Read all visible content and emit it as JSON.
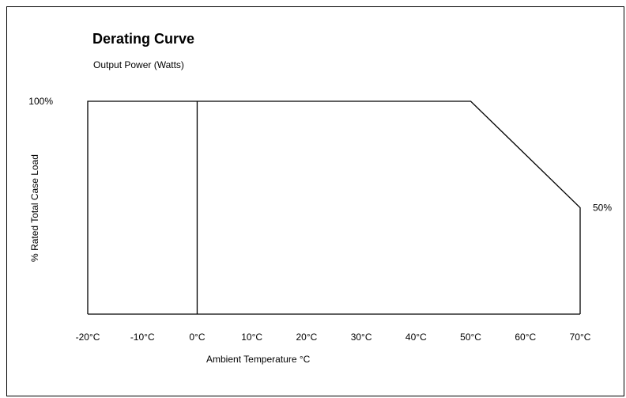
{
  "chart_data": {
    "type": "line",
    "title": "Derating Curve",
    "subtitle": "Output Power (Watts)",
    "xlabel": "Ambient Temperature °C",
    "ylabel": "% Rated Total Case Load",
    "xlim": [
      -20,
      70
    ],
    "ylim": [
      0,
      100
    ],
    "x_tick_labels": [
      "-20°C",
      "-10°C",
      "0°C",
      "10°C",
      "20°C",
      "30°C",
      "40°C",
      "50°C",
      "60°C",
      "70°C"
    ],
    "x_ticks": [
      -20,
      -10,
      0,
      10,
      20,
      30,
      40,
      50,
      60,
      70
    ],
    "series": [
      {
        "x": [
          -20,
          -20,
          50,
          70,
          70
        ],
        "y": [
          0,
          100,
          100,
          50,
          0
        ]
      }
    ],
    "reference_lines": [
      {
        "axis": "x",
        "value": 0
      }
    ],
    "annotations": [
      {
        "text": "100%",
        "x": -20,
        "y": 100
      },
      {
        "text": "50%",
        "x": 70,
        "y": 50
      }
    ],
    "grid": false,
    "legend": "none"
  }
}
